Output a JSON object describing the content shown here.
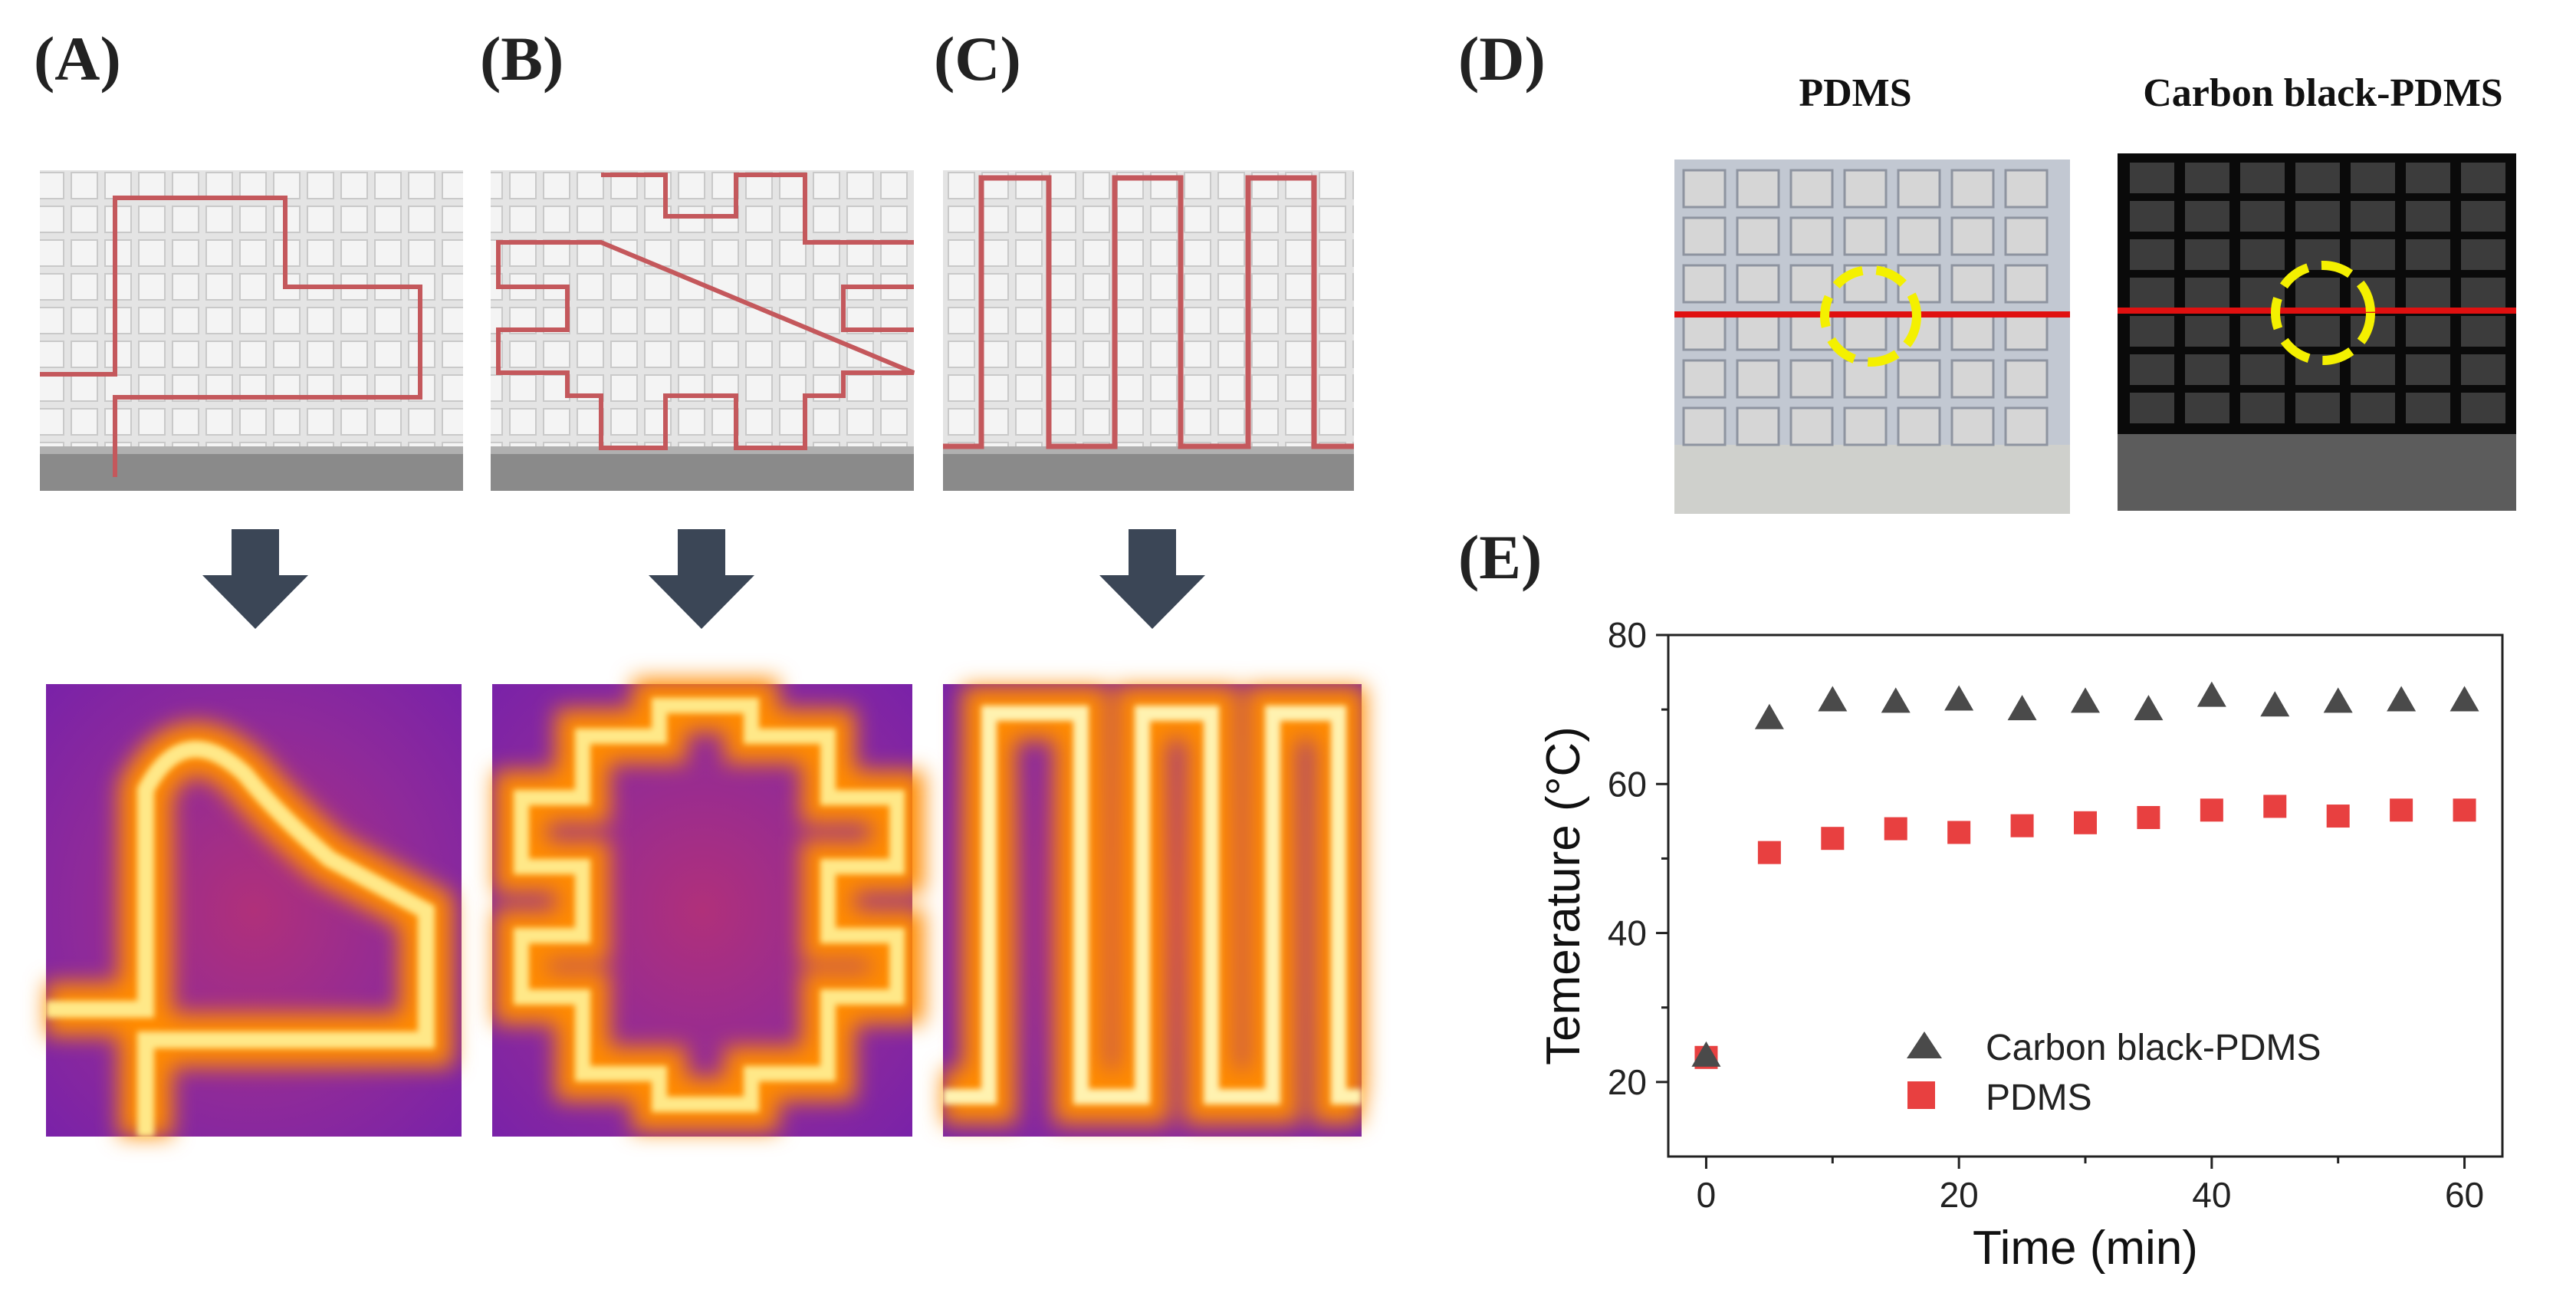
{
  "panels": {
    "a": "(A)",
    "b": "(B)",
    "c": "(C)",
    "d": "(D)",
    "e": "(E)"
  },
  "panel_d": {
    "left_title": "PDMS",
    "right_title": "Carbon black-PDMS"
  },
  "colors": {
    "arrow": "#3b4656",
    "circuit": "#c4585c",
    "red_line": "#e01010",
    "yellow_circle": "#f4f000",
    "series_cb": "#4a4a4a",
    "series_pdms": "#e84040"
  },
  "chart_data": {
    "type": "scatter",
    "title": "",
    "xlabel": "Time (min)",
    "ylabel": "Temerature (°C)",
    "xlim": [
      -3,
      63
    ],
    "ylim": [
      10,
      80
    ],
    "xticks": [
      0,
      20,
      40,
      60
    ],
    "yticks": [
      20,
      40,
      60,
      80
    ],
    "series": [
      {
        "name": "Carbon black-PDMS",
        "marker": "triangle",
        "x": [
          0,
          5,
          10,
          15,
          20,
          25,
          30,
          35,
          40,
          45,
          50,
          55,
          60
        ],
        "y": [
          23.5,
          68.8,
          71.2,
          71.0,
          71.3,
          70.0,
          71.0,
          70.0,
          71.8,
          70.5,
          71.0,
          71.2,
          71.2
        ]
      },
      {
        "name": "PDMS",
        "marker": "square",
        "x": [
          0,
          5,
          10,
          15,
          20,
          25,
          30,
          35,
          40,
          45,
          50,
          55,
          60
        ],
        "y": [
          23.3,
          50.8,
          52.7,
          54.0,
          53.5,
          54.4,
          54.8,
          55.5,
          56.5,
          57.0,
          55.7,
          56.5,
          56.5
        ]
      }
    ],
    "legend": "bottom-center"
  }
}
